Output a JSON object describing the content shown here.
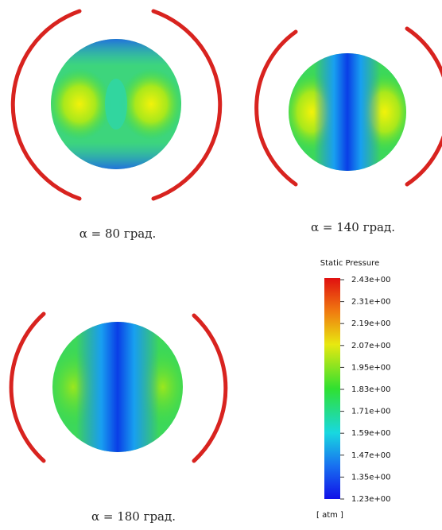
{
  "panels": [
    {
      "caption": "α = 80 град."
    },
    {
      "caption": "α = 140 град."
    },
    {
      "caption": "α = 180 град."
    }
  ],
  "legend": {
    "title": "Static Pressure",
    "ticks": [
      "2.43e+00",
      "2.31e+00",
      "2.19e+00",
      "2.07e+00",
      "1.95e+00",
      "1.83e+00",
      "1.71e+00",
      "1.59e+00",
      "1.47e+00",
      "1.35e+00",
      "1.23e+00"
    ],
    "unit": "[ atm ]"
  }
}
